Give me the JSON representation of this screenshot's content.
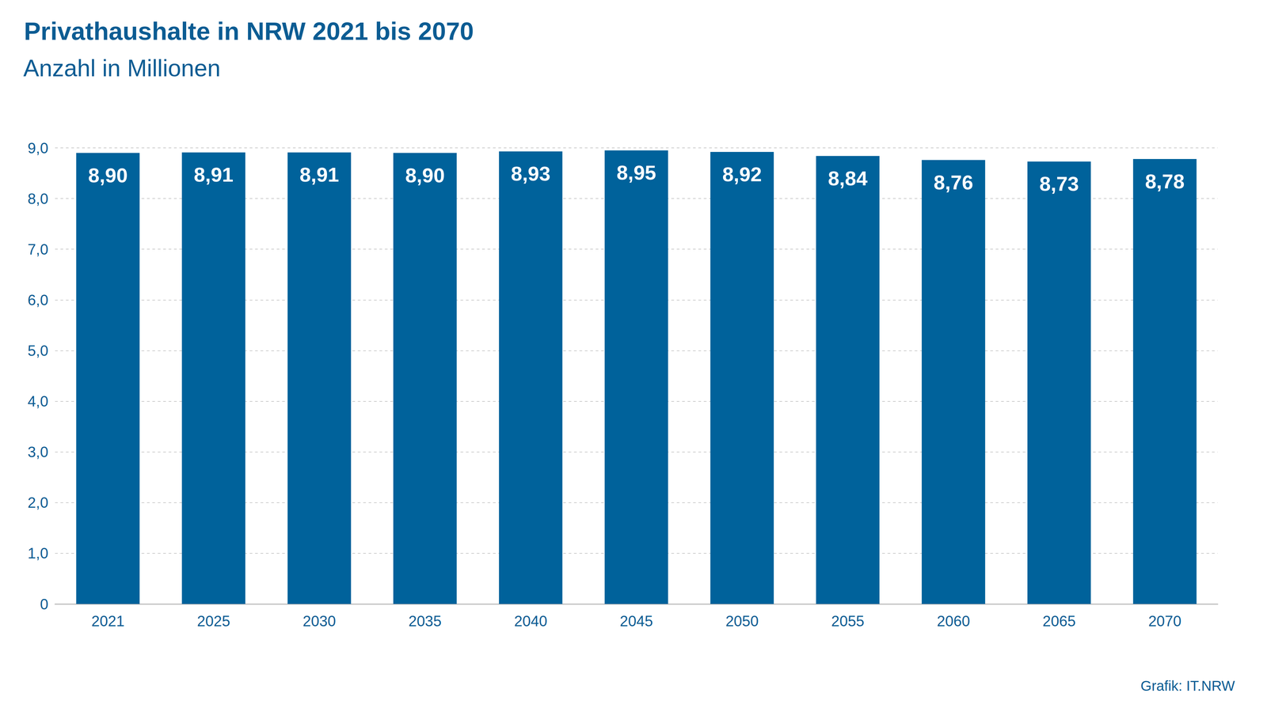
{
  "chart_data": {
    "type": "bar",
    "title": "Privathaushalte in NRW 2021 bis 2070",
    "subtitle": "Anzahl in Millionen",
    "source": "Grafik: IT.NRW",
    "categories": [
      "2021",
      "2025",
      "2030",
      "2035",
      "2040",
      "2045",
      "2050",
      "2055",
      "2060",
      "2065",
      "2070"
    ],
    "values": [
      8.9,
      8.91,
      8.91,
      8.9,
      8.93,
      8.95,
      8.92,
      8.84,
      8.76,
      8.73,
      8.78
    ],
    "value_labels": [
      "8,90",
      "8,91",
      "8,91",
      "8,90",
      "8,93",
      "8,95",
      "8,92",
      "8,84",
      "8,76",
      "8,73",
      "8,78"
    ],
    "color": "#00629b",
    "ylim": [
      0,
      9
    ],
    "yticks": [
      0,
      {
        "value": 1,
        "label": "1,0"
      },
      {
        "value": 2,
        "label": "2,0"
      },
      {
        "value": 3,
        "label": "3,0"
      },
      {
        "value": 4,
        "label": "4,0"
      },
      {
        "value": 5,
        "label": "5,0"
      },
      {
        "value": 6,
        "label": "6,0"
      },
      {
        "value": 7,
        "label": "7,0"
      },
      {
        "value": 8,
        "label": "8,0"
      },
      {
        "value": 9,
        "label": "9,0"
      }
    ],
    "grid": true,
    "data_labels": true
  }
}
